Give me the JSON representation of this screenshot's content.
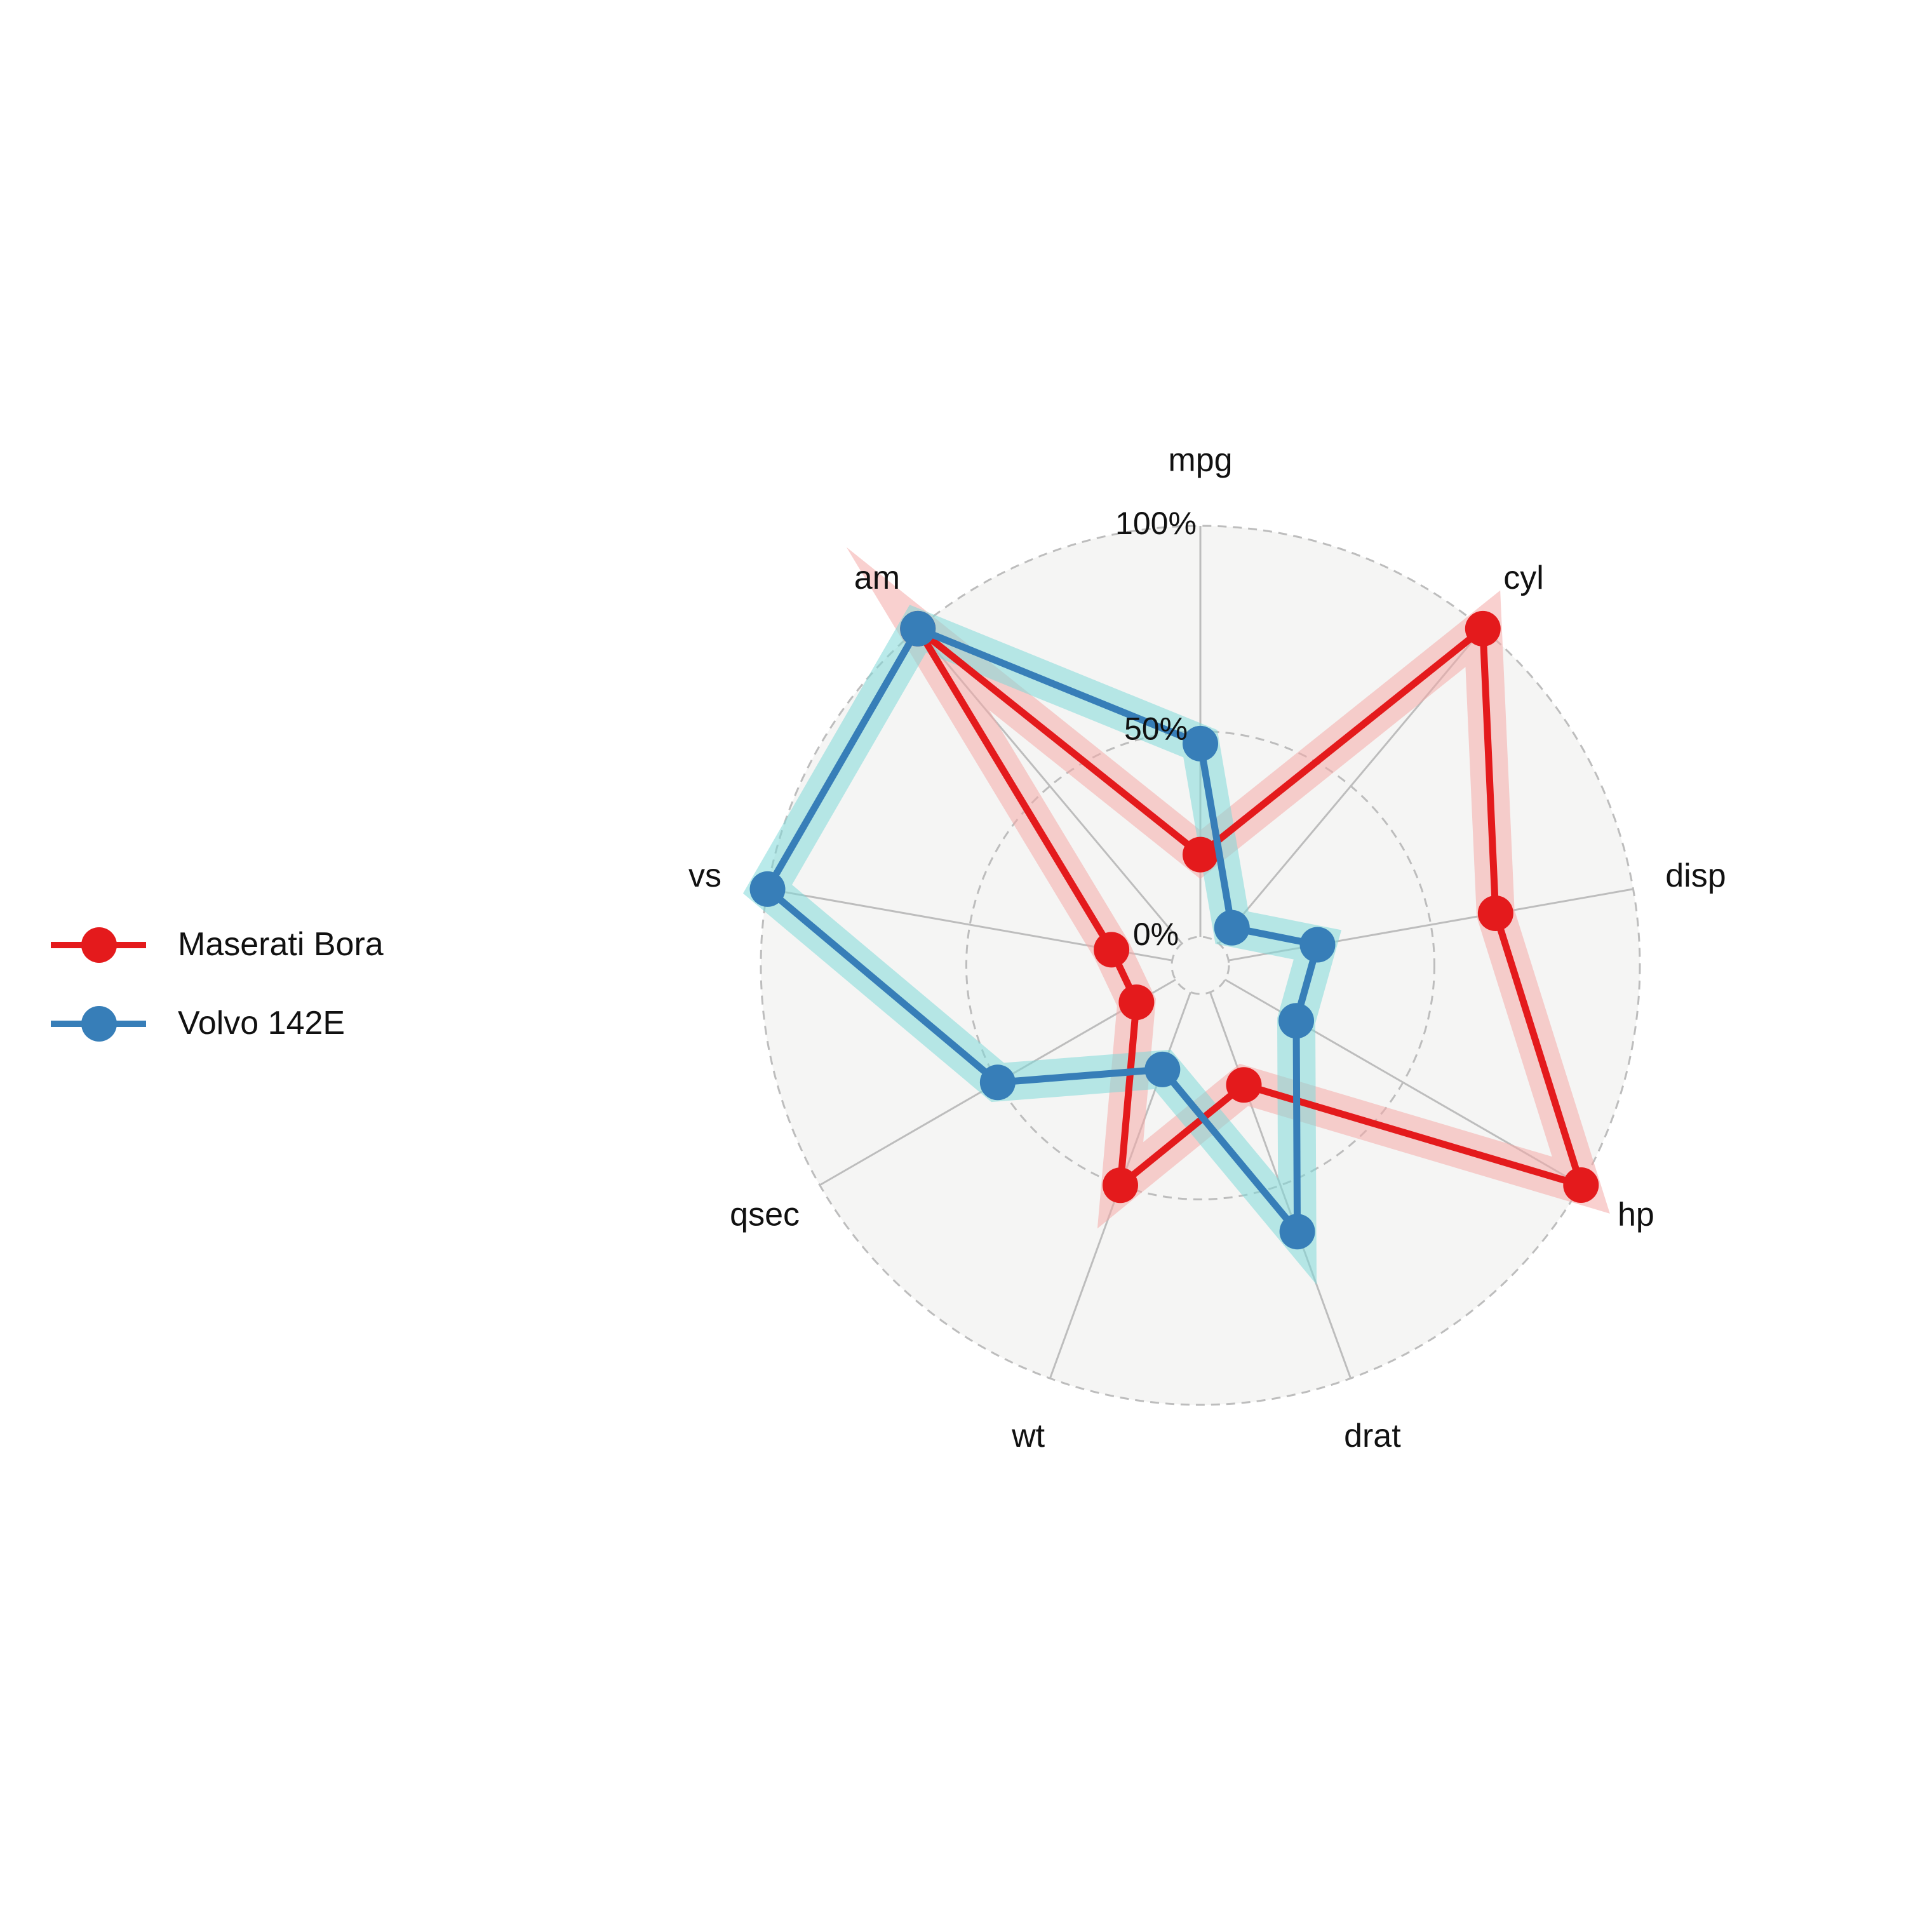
{
  "colors": {
    "background": "#ffffff",
    "panel": "#f5f5f4",
    "grid": "#bdbdbd"
  },
  "chart_data": {
    "type": "radar",
    "axes": [
      "mpg",
      "cyl",
      "disp",
      "hp",
      "drat",
      "wt",
      "qsec",
      "vs",
      "am"
    ],
    "rlim": [
      0,
      1
    ],
    "rticks": [
      {
        "value": 0,
        "label": "0%"
      },
      {
        "value": 0.5,
        "label": "50%"
      },
      {
        "value": 1,
        "label": "100%"
      }
    ],
    "grid": true,
    "legend_position": "left",
    "series": [
      {
        "name": "Maserati Bora",
        "color": "#e41a1c",
        "band_color": "#f4a9a8",
        "values": [
          0.2,
          1.0,
          0.66,
          1.0,
          0.24,
          0.5,
          0.11,
          0.15,
          1.0
        ]
      },
      {
        "name": "Volvo 142E",
        "color": "#377eb8",
        "band_color": "#7fd9d9",
        "values": [
          0.47,
          0.05,
          0.22,
          0.2,
          0.62,
          0.2,
          0.5,
          1.0,
          1.0
        ]
      }
    ]
  }
}
